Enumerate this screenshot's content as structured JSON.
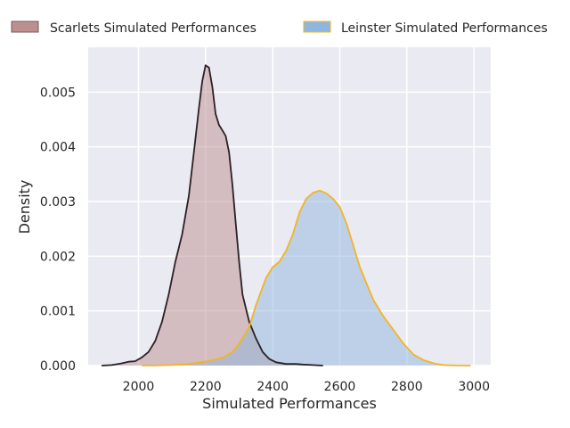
{
  "chart_data": {
    "type": "area",
    "title": "",
    "xlabel": "Simulated Performances",
    "ylabel": "Density",
    "xlim": [
      1850,
      3050
    ],
    "ylim": [
      0,
      0.00582
    ],
    "x_ticks": [
      "2000",
      "2200",
      "2400",
      "2600",
      "2800",
      "3000"
    ],
    "x_tick_values": [
      2000,
      2200,
      2400,
      2600,
      2800,
      3000
    ],
    "y_ticks": [
      "0.000",
      "0.001",
      "0.002",
      "0.003",
      "0.004",
      "0.005"
    ],
    "y_tick_values": [
      0,
      0.001,
      0.002,
      0.003,
      0.004,
      0.005
    ],
    "grid": true,
    "legend_position": "top",
    "series": [
      {
        "name": "Scarlets Simulated Performances",
        "fill_color": "#bc8f8f",
        "line_color": "#2b2024",
        "points": [
          [
            1890,
            0
          ],
          [
            1920,
            1e-05
          ],
          [
            1950,
            4e-05
          ],
          [
            1970,
            7e-05
          ],
          [
            1990,
            8e-05
          ],
          [
            2010,
            0.00015
          ],
          [
            2030,
            0.00025
          ],
          [
            2050,
            0.00045
          ],
          [
            2070,
            0.0008
          ],
          [
            2090,
            0.0013
          ],
          [
            2110,
            0.0019
          ],
          [
            2130,
            0.0024
          ],
          [
            2150,
            0.0031
          ],
          [
            2165,
            0.0039
          ],
          [
            2180,
            0.0047
          ],
          [
            2190,
            0.0052
          ],
          [
            2200,
            0.00549
          ],
          [
            2210,
            0.00545
          ],
          [
            2220,
            0.0051
          ],
          [
            2230,
            0.0046
          ],
          [
            2240,
            0.0044
          ],
          [
            2250,
            0.0043
          ],
          [
            2260,
            0.0042
          ],
          [
            2270,
            0.0039
          ],
          [
            2280,
            0.0033
          ],
          [
            2290,
            0.0026
          ],
          [
            2300,
            0.0019
          ],
          [
            2310,
            0.0013
          ],
          [
            2330,
            0.0008
          ],
          [
            2350,
            0.0005
          ],
          [
            2370,
            0.00025
          ],
          [
            2390,
            0.00012
          ],
          [
            2410,
            6e-05
          ],
          [
            2440,
            3e-05
          ],
          [
            2470,
            3e-05
          ],
          [
            2490,
            2e-05
          ],
          [
            2520,
            1e-05
          ],
          [
            2550,
            0
          ]
        ]
      },
      {
        "name": "Leinster Simulated Performances",
        "fill_color": "#8fb6dd",
        "line_color": "#f2b521",
        "points": [
          [
            2010,
            0
          ],
          [
            2050,
            2e-06
          ],
          [
            2100,
            1e-05
          ],
          [
            2150,
            3e-05
          ],
          [
            2200,
            7e-05
          ],
          [
            2250,
            0.00014
          ],
          [
            2280,
            0.00025
          ],
          [
            2300,
            0.0004
          ],
          [
            2330,
            0.0007
          ],
          [
            2350,
            0.0011
          ],
          [
            2380,
            0.0016
          ],
          [
            2400,
            0.0018
          ],
          [
            2420,
            0.0019
          ],
          [
            2440,
            0.0021
          ],
          [
            2460,
            0.0024
          ],
          [
            2480,
            0.0028
          ],
          [
            2500,
            0.00305
          ],
          [
            2520,
            0.00316
          ],
          [
            2540,
            0.0032
          ],
          [
            2560,
            0.00315
          ],
          [
            2580,
            0.00305
          ],
          [
            2600,
            0.0029
          ],
          [
            2620,
            0.0026
          ],
          [
            2640,
            0.0022
          ],
          [
            2660,
            0.0018
          ],
          [
            2680,
            0.0015
          ],
          [
            2700,
            0.0012
          ],
          [
            2730,
            0.0009
          ],
          [
            2760,
            0.00065
          ],
          [
            2790,
            0.0004
          ],
          [
            2820,
            0.0002
          ],
          [
            2850,
            0.0001
          ],
          [
            2880,
            4e-05
          ],
          [
            2910,
            1e-05
          ],
          [
            2950,
            2e-06
          ],
          [
            2990,
            0
          ]
        ]
      }
    ]
  }
}
